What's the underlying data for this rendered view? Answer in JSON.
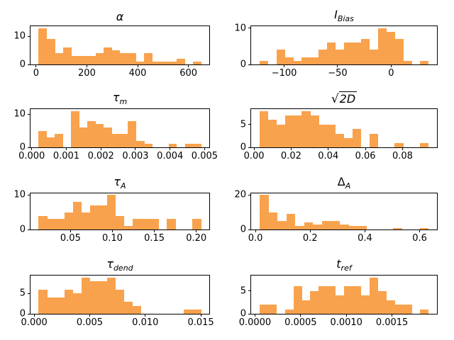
{
  "figure": {
    "background": "#ffffff",
    "axis_color": "#000000",
    "bar_color": "#f9a24e"
  },
  "chart_data": [
    {
      "id": "alpha",
      "type": "histogram",
      "title": "α",
      "title_parts": {
        "base": "α",
        "base_italic": true,
        "sub": "",
        "sub_italic": false,
        "sqrt": false
      },
      "bin_start": 10,
      "bin_width": 32,
      "counts": [
        13,
        9,
        4,
        6,
        3,
        3,
        3,
        4,
        6,
        5,
        4,
        4,
        1,
        4,
        1,
        1,
        1,
        2,
        0,
        1
      ],
      "xlim": [
        -22,
        682
      ],
      "ylim": [
        0,
        13.65
      ],
      "xticks": [
        0,
        200,
        400,
        600
      ],
      "xtick_labels": [
        "0",
        "200",
        "400",
        "600"
      ],
      "yticks": [
        0,
        10
      ],
      "ytick_labels": [
        "0",
        "10"
      ],
      "color": "#f9a24e",
      "grid": false
    },
    {
      "id": "i-bias",
      "type": "histogram",
      "title": "I_Bias",
      "title_parts": {
        "base": "I",
        "base_italic": true,
        "sub": "Bias",
        "sub_italic": true,
        "sqrt": false
      },
      "bin_start": -123,
      "bin_width": 7.9,
      "counts": [
        1,
        0,
        4,
        2,
        1,
        2,
        2,
        4,
        6,
        4,
        6,
        6,
        7,
        4,
        10,
        9,
        7,
        1,
        0,
        1
      ],
      "xlim": [
        -130.9,
        42.9
      ],
      "ylim": [
        0,
        10.5
      ],
      "xticks": [
        -100,
        -50,
        0
      ],
      "xtick_labels": [
        "−100",
        "−50",
        "0"
      ],
      "yticks": [
        0,
        10
      ],
      "ytick_labels": [
        "0",
        "10"
      ],
      "color": "#f9a24e",
      "grid": false
    },
    {
      "id": "tau-m",
      "type": "histogram",
      "title": "τ_m",
      "title_parts": {
        "base": "τ",
        "base_italic": true,
        "sub": "m",
        "sub_italic": true,
        "sqrt": false
      },
      "bin_start": 0.0002,
      "bin_width": 0.000235,
      "counts": [
        5,
        3,
        4,
        0,
        11,
        6,
        8,
        7,
        6,
        4,
        4,
        8,
        2,
        1,
        0,
        0,
        1,
        0,
        1,
        1
      ],
      "xlim": [
        -3.5e-05,
        0.005135
      ],
      "ylim": [
        0,
        11.55
      ],
      "xticks": [
        0.0,
        0.001,
        0.002,
        0.003,
        0.004,
        0.005
      ],
      "xtick_labels": [
        "0.000",
        "0.001",
        "0.002",
        "0.003",
        "0.004",
        "0.005"
      ],
      "yticks": [
        0,
        10
      ],
      "ytick_labels": [
        "0",
        "10"
      ],
      "color": "#f9a24e",
      "grid": false
    },
    {
      "id": "sqrt-2d",
      "type": "histogram",
      "title": "√(2D)",
      "title_parts": {
        "base": "2D",
        "base_italic": true,
        "sub": "",
        "sub_italic": false,
        "sqrt": true
      },
      "bin_start": 0.003,
      "bin_width": 0.00455,
      "counts": [
        8,
        6,
        5,
        7,
        7,
        8,
        7,
        5,
        5,
        3,
        2,
        4,
        0,
        3,
        0,
        0,
        1,
        0,
        0,
        1
      ],
      "xlim": [
        -0.00155,
        0.09855
      ],
      "ylim": [
        0,
        8.4
      ],
      "xticks": [
        0.0,
        0.02,
        0.04,
        0.06,
        0.08
      ],
      "xtick_labels": [
        "0.00",
        "0.02",
        "0.04",
        "0.06",
        "0.08"
      ],
      "yticks": [
        0,
        5
      ],
      "ytick_labels": [
        "0",
        "5"
      ],
      "color": "#f9a24e",
      "grid": false
    },
    {
      "id": "tau-a",
      "type": "histogram",
      "title": "τ_A",
      "title_parts": {
        "base": "τ",
        "base_italic": true,
        "sub": "A",
        "sub_italic": true,
        "sqrt": false
      },
      "bin_start": 0.012,
      "bin_width": 0.0102,
      "counts": [
        4,
        3,
        3,
        5,
        8,
        5,
        7,
        7,
        10,
        4,
        1,
        3,
        3,
        3,
        0,
        3,
        0,
        0,
        3
      ],
      "xlim": [
        0.0023,
        0.2155
      ],
      "ylim": [
        0,
        10.5
      ],
      "xticks": [
        0.05,
        0.1,
        0.15,
        0.2
      ],
      "xtick_labels": [
        "0.05",
        "0.10",
        "0.15",
        "0.20"
      ],
      "yticks": [
        0,
        10
      ],
      "ytick_labels": [
        "0",
        "10"
      ],
      "color": "#f9a24e",
      "grid": false
    },
    {
      "id": "delta-a",
      "type": "histogram",
      "title": "Δ_A",
      "title_parts": {
        "base": "Δ",
        "base_italic": false,
        "sub": "A",
        "sub_italic": true,
        "sqrt": false
      },
      "bin_start": 0.015,
      "bin_width": 0.0325,
      "counts": [
        20,
        10,
        5,
        9,
        2,
        4,
        3,
        5,
        5,
        3,
        2,
        2,
        0,
        0,
        0,
        1,
        0,
        0,
        1
      ],
      "xlim": [
        -0.0159,
        0.6634
      ],
      "ylim": [
        0,
        21
      ],
      "xticks": [
        0.0,
        0.2,
        0.4,
        0.6
      ],
      "xtick_labels": [
        "0.0",
        "0.2",
        "0.4",
        "0.6"
      ],
      "yticks": [
        0,
        20
      ],
      "ytick_labels": [
        "0",
        "20"
      ],
      "color": "#f9a24e",
      "grid": false
    },
    {
      "id": "tau-dend",
      "type": "histogram",
      "title": "τ_dend",
      "title_parts": {
        "base": "τ",
        "base_italic": true,
        "sub": "dend",
        "sub_italic": true,
        "sqrt": false
      },
      "bin_start": 0.0004,
      "bin_width": 0.00077,
      "counts": [
        6,
        4,
        4,
        6,
        5,
        9,
        8,
        8,
        9,
        6,
        3,
        2,
        0,
        0,
        0,
        0,
        0,
        1,
        1
      ],
      "xlim": [
        -0.00033,
        0.01576
      ],
      "ylim": [
        0,
        9.45
      ],
      "xticks": [
        0.0,
        0.005,
        0.01,
        0.015
      ],
      "xtick_labels": [
        "0.000",
        "0.005",
        "0.010",
        "0.015"
      ],
      "yticks": [
        0,
        5
      ],
      "ytick_labels": [
        "0",
        "5"
      ],
      "color": "#f9a24e",
      "grid": false
    },
    {
      "id": "t-ref",
      "type": "histogram",
      "title": "t_ref",
      "title_parts": {
        "base": "t",
        "base_italic": true,
        "sub": "ref",
        "sub_italic": true,
        "sqrt": false
      },
      "bin_start": 5e-05,
      "bin_width": 9.25e-05,
      "counts": [
        2,
        2,
        0,
        1,
        6,
        3,
        5,
        6,
        6,
        4,
        6,
        6,
        4,
        8,
        5,
        3,
        2,
        2,
        0,
        1
      ],
      "xlim": [
        -4.25e-05,
        0.0019925
      ],
      "ylim": [
        0,
        8.4
      ],
      "xticks": [
        0.0,
        0.0005,
        0.001,
        0.0015
      ],
      "xtick_labels": [
        "0.0000",
        "0.0005",
        "0.0010",
        "0.0015"
      ],
      "yticks": [
        0,
        5
      ],
      "ytick_labels": [
        "0",
        "5"
      ],
      "color": "#f9a24e",
      "grid": false
    }
  ]
}
